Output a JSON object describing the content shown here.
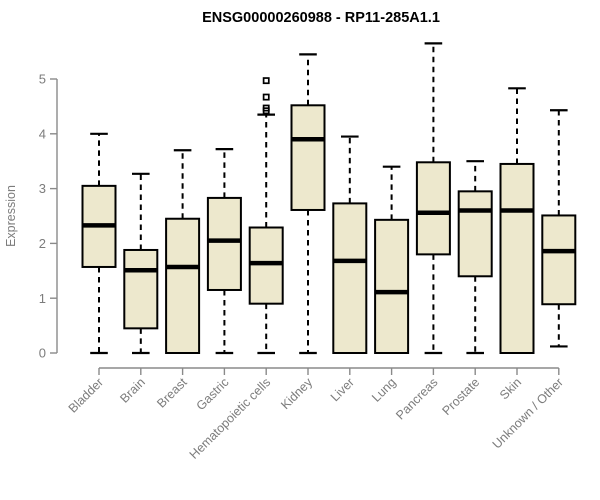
{
  "chart_data": {
    "type": "boxplot",
    "title": "ENSG00000260988 - RP11-285A1.1",
    "ylabel": "Expression",
    "xlabel": "",
    "ylim": [
      0,
      5.8
    ],
    "yticks": [
      0,
      1,
      2,
      3,
      4,
      5
    ],
    "grid": false,
    "legend": "none",
    "categories": [
      "Bladder",
      "Brain",
      "Breast",
      "Gastric",
      "Hematopoietic cells",
      "Kidney",
      "Liver",
      "Lung",
      "Pancreas",
      "Prostate",
      "Skin",
      "Unknown / Other"
    ],
    "boxes": [
      {
        "category": "Bladder",
        "min": 0,
        "q1": 1.57,
        "median": 2.33,
        "q3": 3.05,
        "max": 4.0,
        "outliers": []
      },
      {
        "category": "Brain",
        "min": 0,
        "q1": 0.45,
        "median": 1.51,
        "q3": 1.88,
        "max": 3.27,
        "outliers": []
      },
      {
        "category": "Breast",
        "min": 0,
        "q1": 0,
        "median": 1.57,
        "q3": 2.45,
        "max": 3.7,
        "outliers": []
      },
      {
        "category": "Gastric",
        "min": 0,
        "q1": 1.15,
        "median": 2.05,
        "q3": 2.83,
        "max": 3.72,
        "outliers": []
      },
      {
        "category": "Hematopoietic cells",
        "min": 0,
        "q1": 0.9,
        "median": 1.64,
        "q3": 2.29,
        "max": 4.35,
        "outliers": [
          4.42,
          4.47,
          4.67,
          4.97
        ]
      },
      {
        "category": "Kidney",
        "min": 0,
        "q1": 2.61,
        "median": 3.9,
        "q3": 4.52,
        "max": 5.45,
        "outliers": []
      },
      {
        "category": "Liver",
        "min": 0,
        "q1": 0,
        "median": 1.68,
        "q3": 2.73,
        "max": 3.95,
        "outliers": []
      },
      {
        "category": "Lung",
        "min": 0,
        "q1": 0,
        "median": 1.11,
        "q3": 2.43,
        "max": 3.4,
        "outliers": []
      },
      {
        "category": "Pancreas",
        "min": 0,
        "q1": 1.8,
        "median": 2.56,
        "q3": 3.48,
        "max": 5.65,
        "outliers": []
      },
      {
        "category": "Prostate",
        "min": 0,
        "q1": 1.4,
        "median": 2.6,
        "q3": 2.95,
        "max": 3.5,
        "outliers": []
      },
      {
        "category": "Skin",
        "min": 0,
        "q1": 0,
        "median": 2.6,
        "q3": 3.45,
        "max": 4.83,
        "outliers": []
      },
      {
        "category": "Unknown / Other",
        "min": 0.12,
        "q1": 0.89,
        "median": 1.86,
        "q3": 2.51,
        "max": 4.43,
        "outliers": []
      }
    ],
    "colors": {
      "box_fill": "#EDE8CD",
      "box_border": "#000000",
      "median": "#000000",
      "whisker": "#000000",
      "axis_line": "#8a8a8a",
      "tick_label": "#7c7c7c",
      "title": "#000000"
    }
  }
}
